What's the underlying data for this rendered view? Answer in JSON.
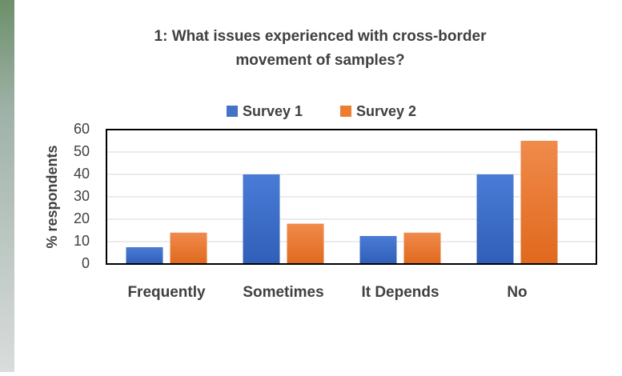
{
  "chart_data": {
    "type": "bar",
    "title": [
      "1: What issues experienced with cross-border",
      "movement of samples?"
    ],
    "y_label": "% respondents",
    "categories": [
      "Frequently",
      "Sometimes",
      "It Depends",
      "No"
    ],
    "series": [
      {
        "name": "Survey 1",
        "color": "#4472c4",
        "values": [
          7.5,
          40,
          12.5,
          40
        ]
      },
      {
        "name": "Survey 2",
        "color": "#ed7d31",
        "values": [
          14,
          18,
          14,
          55
        ]
      }
    ],
    "ylim": [
      0,
      60
    ],
    "yticks": [
      0,
      10,
      20,
      30,
      40,
      50,
      60
    ],
    "grid": true,
    "legend": "top"
  }
}
